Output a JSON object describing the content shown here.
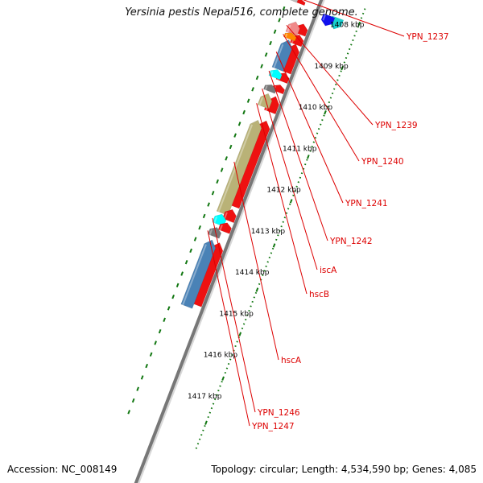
{
  "title": "Yersinia pestis Nepal516, complete genome.",
  "footer": {
    "accession": "Accession: NC_008149",
    "topology": "Topology: circular; Length: 4,534,590 bp; Genes: 4,085"
  },
  "ruler": {
    "unit": "kbp",
    "labels": [
      "1408 kbp",
      "1409 kbp",
      "1410 kbp",
      "1411 kbp",
      "1412 kbp",
      "1413 kbp",
      "1414 kbp",
      "1415 kbp",
      "1416 kbp",
      "1417 kbp"
    ]
  },
  "colors": {
    "red": "#ee1111",
    "cyan": "#18d0d0",
    "bright_cyan": "#00ffff",
    "blue": "#1010ee",
    "pink": "#f08a8a",
    "orange": "#ff8800",
    "steelblue": "#4a82b6",
    "olive": "#b9b277",
    "grey": "#777777",
    "lightgrey": "#bbbbbb",
    "label": "#dd0000",
    "tick": "#117711",
    "backbone": "#777777"
  },
  "features": [
    {
      "s": 0.995,
      "e": 1.095,
      "lane": 4.0,
      "color": "red",
      "dir": -1
    },
    {
      "s": 0.995,
      "e": 1.095,
      "lane": 5.6,
      "color": "lightgrey",
      "dir": -1
    },
    {
      "s": 1.09,
      "e": 1.34,
      "lane": -4.4,
      "color": "cyan",
      "dir": 1
    },
    {
      "s": 1.11,
      "e": 1.34,
      "lane": -2.6,
      "color": "blue",
      "dir": 1
    },
    {
      "s": 1.465,
      "e": 1.7,
      "lane": 1.6,
      "color": "red",
      "dir": -1
    },
    {
      "s": 1.48,
      "e": 1.75,
      "lane": 3.2,
      "color": "pink",
      "dir": -1
    },
    {
      "s": 1.71,
      "e": 1.93,
      "lane": 1.6,
      "color": "red",
      "dir": -1
    },
    {
      "s": 1.73,
      "e": 1.87,
      "lane": 3.2,
      "color": "orange",
      "dir": -1
    },
    {
      "s": 1.92,
      "e": 2.55,
      "lane": 1.6,
      "color": "red",
      "dir": -1
    },
    {
      "s": 1.89,
      "e": 2.55,
      "lane": 3.2,
      "color": "steelblue",
      "dir": -1
    },
    {
      "s": 2.57,
      "e": 2.76,
      "lane": 1.6,
      "color": "red",
      "dir": -1
    },
    {
      "s": 2.56,
      "e": 2.74,
      "lane": 3.2,
      "color": "bright_cyan",
      "dir": -1
    },
    {
      "s": 2.84,
      "e": 3.0,
      "lane": 1.6,
      "color": "red",
      "dir": -1
    },
    {
      "s": 2.9,
      "e": 3.05,
      "lane": 3.2,
      "color": "grey",
      "dir": -1
    },
    {
      "s": 3.1,
      "e": 3.45,
      "lane": 1.6,
      "color": "red",
      "dir": -1
    },
    {
      "s": 3.1,
      "e": 3.4,
      "lane": 3.2,
      "color": "olive",
      "dir": -1
    },
    {
      "s": 3.65,
      "e": 5.58,
      "lane": 1.6,
      "color": "red",
      "dir": -1
    },
    {
      "s": 3.7,
      "e": 5.8,
      "lane": 3.2,
      "color": "olive",
      "dir": -1
    },
    {
      "s": 5.65,
      "e": 5.9,
      "lane": 1.6,
      "color": "red",
      "dir": -1
    },
    {
      "s": 5.82,
      "e": 6.05,
      "lane": 3.2,
      "color": "bright_cyan",
      "dir": -1
    },
    {
      "s": 5.95,
      "e": 6.15,
      "lane": 1.6,
      "color": "red",
      "dir": -1
    },
    {
      "s": 6.12,
      "e": 6.32,
      "lane": 3.2,
      "color": "grey",
      "dir": -1
    },
    {
      "s": 6.4,
      "e": 7.8,
      "lane": 1.6,
      "color": "red",
      "dir": -1
    },
    {
      "s": 6.4,
      "e": 7.9,
      "lane": 3.2,
      "color": "steelblue",
      "dir": -1
    }
  ],
  "gene_labels": [
    {
      "text": "YPN_1237",
      "at": 1.0,
      "lane": 5.6
    },
    {
      "text": "YPN_1239",
      "at": 1.62,
      "lane": 3.2
    },
    {
      "text": "YPN_1240",
      "at": 1.82,
      "lane": 3.2
    },
    {
      "text": "YPN_1241",
      "at": 2.22,
      "lane": 3.2
    },
    {
      "text": "YPN_1242",
      "at": 2.65,
      "lane": 3.2
    },
    {
      "text": "iscA",
      "at": 3.05,
      "lane": 3.2
    },
    {
      "text": "hscB",
      "at": 3.38,
      "lane": 3.2
    },
    {
      "text": "hscA",
      "at": 4.7,
      "lane": 3.2
    },
    {
      "text": "YPN_1246",
      "at": 5.97,
      "lane": 3.2
    },
    {
      "text": "YPN_1247",
      "at": 6.25,
      "lane": 3.2
    }
  ]
}
